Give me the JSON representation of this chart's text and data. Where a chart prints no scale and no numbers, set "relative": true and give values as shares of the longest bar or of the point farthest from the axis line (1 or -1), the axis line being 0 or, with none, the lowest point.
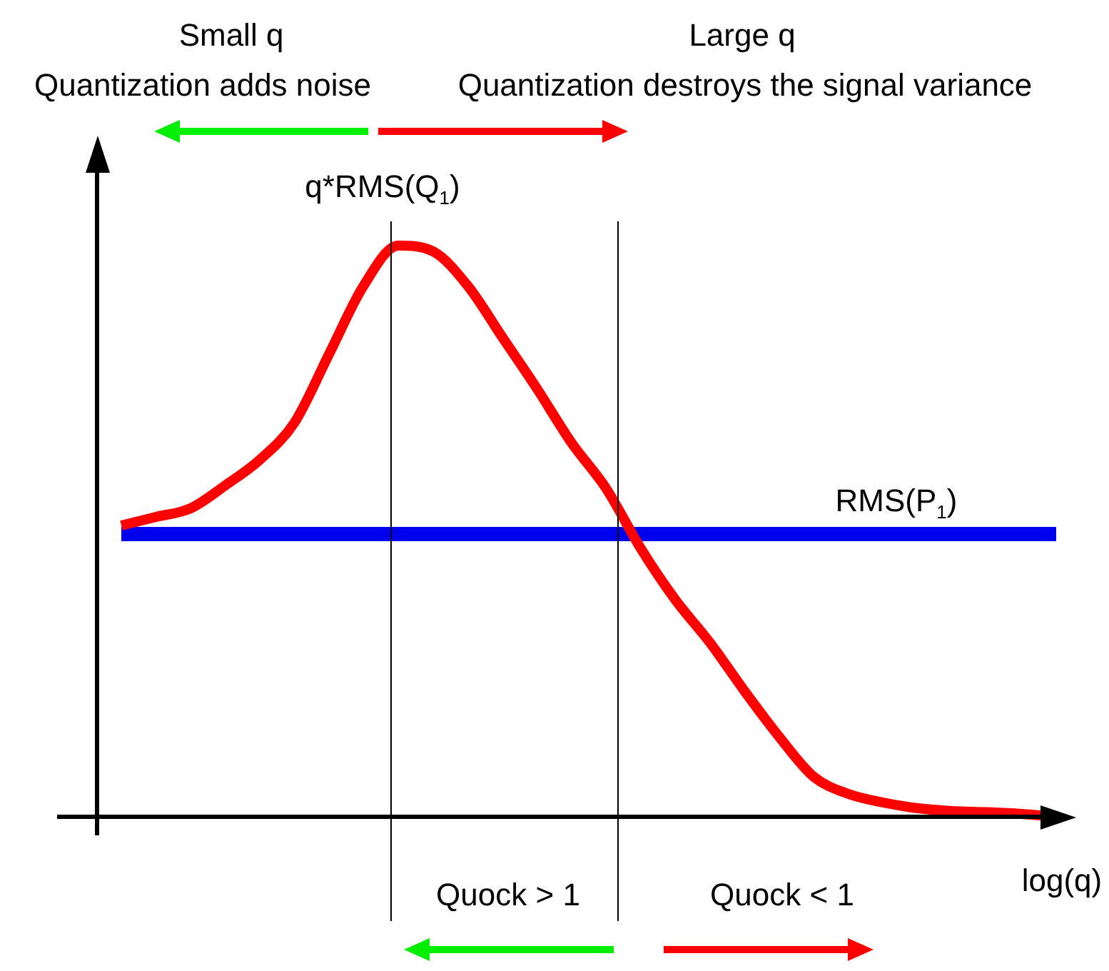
{
  "chart_data": {
    "type": "line",
    "relative": true,
    "xlabel": "log(q)",
    "categories": [
      null,
      null,
      null,
      null,
      null,
      null,
      null,
      null,
      null,
      null,
      null,
      null,
      null,
      null,
      null,
      null,
      null,
      null,
      null,
      null,
      null,
      null,
      null,
      null,
      null,
      null,
      null,
      null
    ],
    "series": [
      {
        "name": "q*RMS(Q$_{1}$)",
        "color": "#ff0000",
        "values": [
          0.51,
          0.525,
          0.54,
          0.58,
          0.625,
          0.69,
          0.81,
          0.93,
          1.0,
          0.99,
          0.93,
          0.84,
          0.75,
          0.655,
          0.575,
          0.47,
          0.38,
          0.305,
          0.22,
          0.14,
          0.07,
          0.04,
          0.025,
          0.015,
          0.01,
          0.008,
          0.005,
          0
        ]
      },
      {
        "name": "RMS(P$_{1}$)",
        "color": "#0000ee",
        "values": [
          0.495,
          0.495,
          0.495,
          0.495,
          0.495,
          0.495,
          0.495,
          0.495,
          0.495,
          0.495,
          0.495,
          0.495,
          0.495,
          0.495,
          0.495,
          0.495,
          0.495,
          0.495,
          0.495,
          0.495,
          0.495,
          0.495,
          0.495,
          0.495,
          0.495,
          0.495,
          0.495,
          0.495
        ]
      }
    ],
    "annotations": [
      "Small q",
      "Quantization adds noise",
      "Large q",
      "Quantization destroys the signal variance",
      "Quock > 1",
      "Quock < 1"
    ],
    "legend": false,
    "marker": "none",
    "line_style": "solid"
  }
}
